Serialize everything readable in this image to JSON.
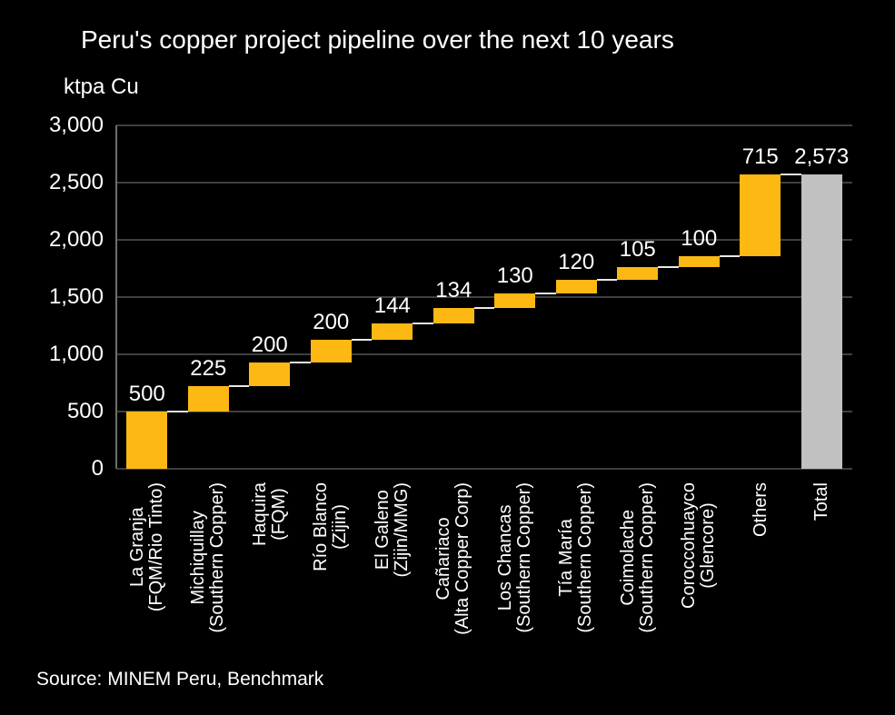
{
  "chart_data": {
    "type": "waterfall-bar",
    "title": "Peru's copper project pipeline over the next 10 years",
    "unit_label": "ktpa Cu",
    "source": "Source: MINEM Peru, Benchmark",
    "categories": [
      {
        "name": "La Granja",
        "owner": "(FQM/Rio Tinto)"
      },
      {
        "name": "Michiquillay",
        "owner": "(Southern Copper)"
      },
      {
        "name": "Haquira",
        "owner": "(FQM)"
      },
      {
        "name": "Río Blanco",
        "owner": "(Zijin)"
      },
      {
        "name": "El Galeno",
        "owner": "(Zijin/MMG)"
      },
      {
        "name": "Cañariaco",
        "owner": "(Alta Copper Corp)"
      },
      {
        "name": "Los Chancas",
        "owner": "(Southern Copper)"
      },
      {
        "name": "Tía María",
        "owner": "(Southern Copper)"
      },
      {
        "name": "Coimolache",
        "owner": "(Southern Copper)"
      },
      {
        "name": "Coroccohuayco",
        "owner": "(Glencore)"
      },
      {
        "name": "Others",
        "owner": ""
      },
      {
        "name": "Total",
        "owner": ""
      }
    ],
    "values": [
      500,
      225,
      200,
      200,
      144,
      134,
      130,
      120,
      105,
      100,
      715,
      2573
    ],
    "value_labels": [
      "500",
      "225",
      "200",
      "200",
      "144",
      "134",
      "130",
      "120",
      "105",
      "100",
      "715",
      "2,573"
    ],
    "cumulative": [
      500,
      725,
      925,
      1125,
      1269,
      1403,
      1533,
      1653,
      1758,
      1858,
      2573
    ],
    "total_index": 11,
    "total_value": 2573,
    "ylabel": "ktpa Cu",
    "ylim": [
      0,
      3000
    ],
    "ytick_step": 500,
    "ytick_labels": [
      "0",
      "500",
      "1,000",
      "1,500",
      "2,000",
      "2,500",
      "3,000"
    ],
    "grid": true,
    "legend": "none",
    "colors": {
      "bar": "#FDB813",
      "total_bar": "#C1C1C1",
      "grid": "#3F3F3F",
      "axis": "#6E6E6E",
      "connector": "#E8E8E8",
      "text": "#FFFFFF",
      "background": "#000000"
    }
  }
}
